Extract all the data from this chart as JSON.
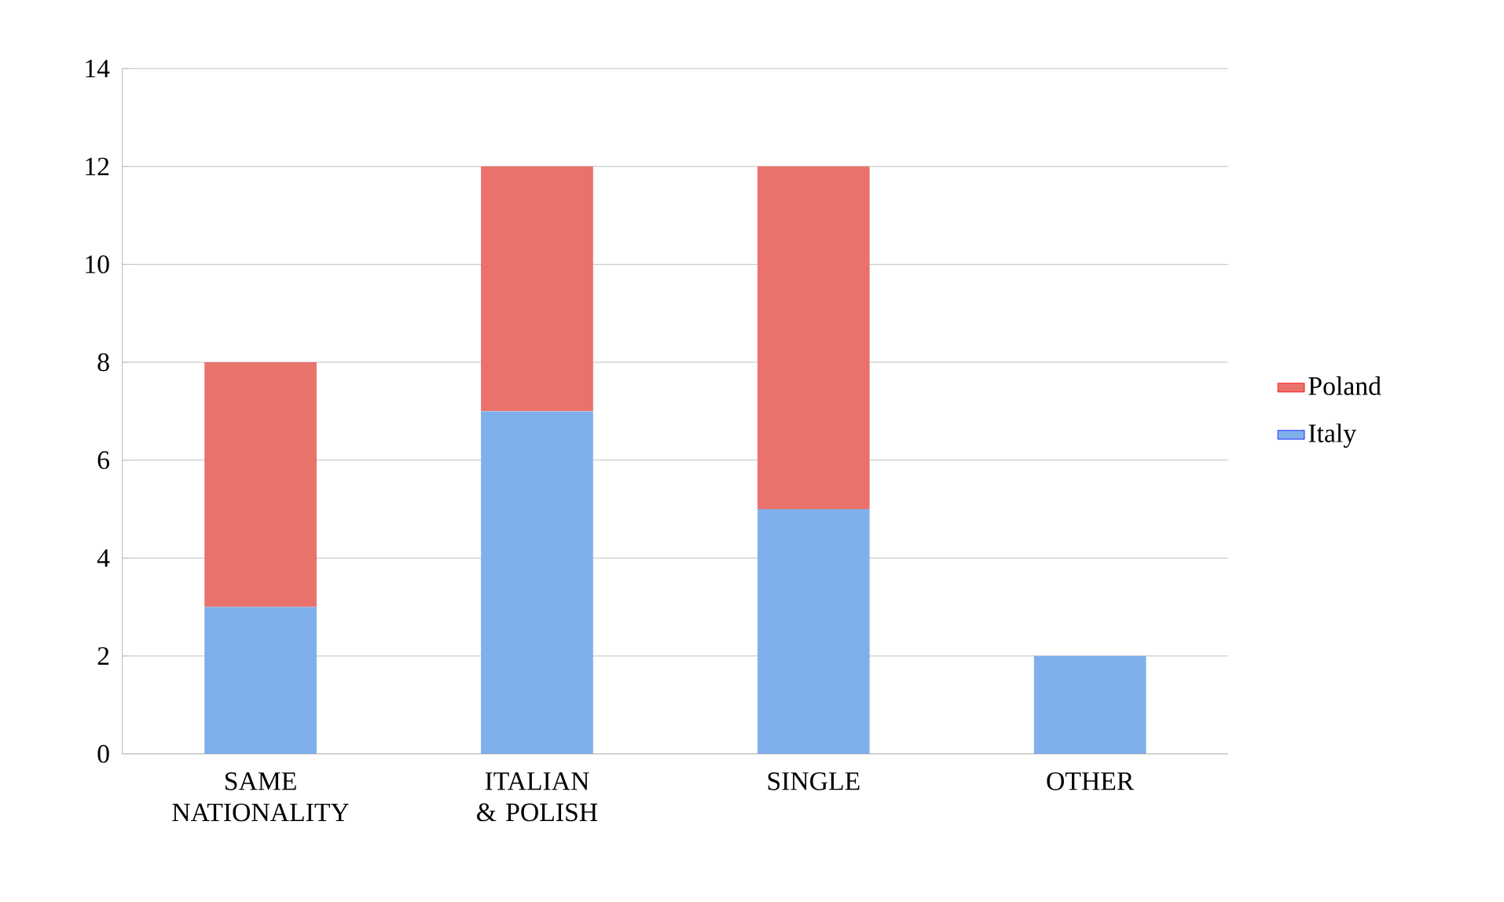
{
  "chart_data": {
    "type": "bar",
    "stacked": true,
    "categories": [
      "SAME NATIONALITY",
      "ITALIAN & POLISH",
      "SINGLE",
      "OTHER"
    ],
    "series": [
      {
        "name": "Italy",
        "color": "#7fb0ec",
        "values": [
          3,
          7,
          5,
          2
        ]
      },
      {
        "name": "Poland",
        "color": "#e9736c",
        "values": [
          5,
          5,
          7,
          0
        ]
      }
    ],
    "ylim": [
      0,
      14
    ],
    "yticks": [
      0,
      2,
      4,
      6,
      8,
      10,
      12,
      14
    ],
    "grid": "y",
    "legend": "right"
  }
}
